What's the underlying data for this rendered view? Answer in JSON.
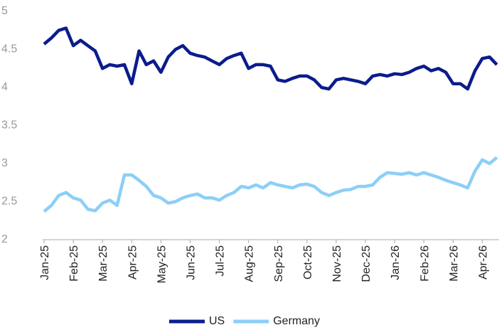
{
  "chart_data": {
    "type": "line",
    "categories": [
      "Jan-25",
      null,
      null,
      null,
      "Feb-25",
      null,
      null,
      null,
      "Mar-25",
      null,
      null,
      null,
      "Apr-25",
      null,
      null,
      null,
      "May-25",
      null,
      null,
      null,
      "Jun-25",
      null,
      null,
      null,
      "Jul-25",
      null,
      null,
      null,
      "Aug-25",
      null,
      null,
      null,
      "Sep-25",
      null,
      null,
      null,
      "Oct-25",
      null,
      null,
      null,
      "Nov-25",
      null,
      null,
      null,
      "Dec-25",
      null,
      null,
      null,
      "Jan-26",
      null,
      null,
      null,
      "Feb-26",
      null,
      null,
      null,
      "Mar-26",
      null,
      null,
      null,
      "Apr-26",
      null,
      null
    ],
    "series": [
      {
        "name": "US",
        "color": "#0b1c8c",
        "values": [
          4.57,
          4.65,
          4.75,
          4.78,
          4.55,
          4.62,
          4.55,
          4.48,
          4.25,
          4.3,
          4.28,
          4.3,
          4.05,
          4.48,
          4.3,
          4.35,
          4.2,
          4.4,
          4.5,
          4.55,
          4.45,
          4.42,
          4.4,
          4.35,
          4.3,
          4.38,
          4.42,
          4.45,
          4.25,
          4.3,
          4.3,
          4.28,
          4.1,
          4.08,
          4.12,
          4.15,
          4.15,
          4.1,
          4.0,
          3.98,
          4.1,
          4.12,
          4.1,
          4.08,
          4.05,
          4.15,
          4.17,
          4.15,
          4.18,
          4.17,
          4.2,
          4.25,
          4.28,
          4.22,
          4.25,
          4.2,
          4.05,
          4.05,
          3.98,
          4.22,
          4.38,
          4.4,
          4.3
        ]
      },
      {
        "name": "Germany",
        "color": "#8ccff7",
        "values": [
          2.37,
          2.45,
          2.58,
          2.62,
          2.55,
          2.52,
          2.4,
          2.38,
          2.48,
          2.52,
          2.45,
          2.85,
          2.85,
          2.78,
          2.7,
          2.58,
          2.55,
          2.48,
          2.5,
          2.55,
          2.58,
          2.6,
          2.55,
          2.55,
          2.52,
          2.58,
          2.62,
          2.7,
          2.68,
          2.72,
          2.68,
          2.75,
          2.72,
          2.7,
          2.68,
          2.72,
          2.73,
          2.7,
          2.62,
          2.58,
          2.62,
          2.65,
          2.66,
          2.7,
          2.7,
          2.72,
          2.82,
          2.88,
          2.87,
          2.86,
          2.88,
          2.85,
          2.88,
          2.85,
          2.82,
          2.78,
          2.75,
          2.72,
          2.68,
          2.9,
          3.05,
          3.0,
          3.08
        ]
      }
    ],
    "ylim": [
      2,
      5
    ],
    "yticks": [
      2,
      2.5,
      3,
      3.5,
      4,
      4.5,
      5
    ]
  }
}
